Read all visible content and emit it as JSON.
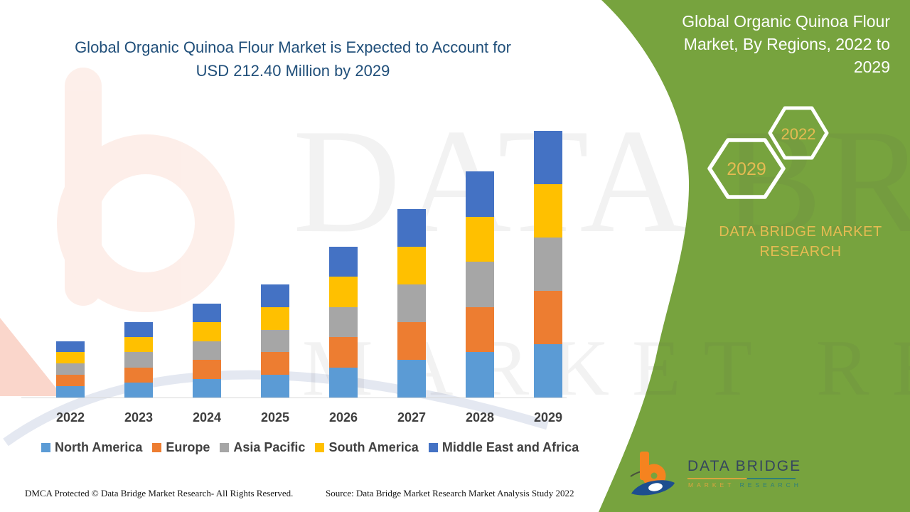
{
  "colors": {
    "title_blue": "#1F4E79",
    "panel_green": "#77A33E",
    "gold": "#E5BB52",
    "axis_line": "#D9D9D9",
    "label_gray": "#3F3F3F",
    "legend_gray": "#404040",
    "logo_navy": "#35465E",
    "logo_orange": "#F5831F",
    "logo_blue": "#1D4E8F",
    "logo_underline_gold": "#D9A53F",
    "logo_underline_teal": "#2E7F78",
    "watermark_salmon": "#F0805A",
    "watermark_swoosh": "#E4E8F1"
  },
  "header": {
    "title_line1": "Global Organic Quinoa Flour Market is Expected to Account for",
    "title_line2": "USD 212.40 Million by 2029"
  },
  "chart_data": {
    "type": "bar",
    "stacked": true,
    "title": "Global Organic Quinoa Flour Market is Expected to Account for USD 212.40 Million by 2029",
    "unit": "USD Million",
    "categories": [
      "2022",
      "2023",
      "2024",
      "2025",
      "2026",
      "2027",
      "2028",
      "2029"
    ],
    "series": [
      {
        "name": "North America",
        "color": "#5B9BD5",
        "values": [
          9.0,
          12.0,
          15.0,
          18.0,
          24.0,
          30.0,
          36.0,
          42.5
        ]
      },
      {
        "name": "Europe",
        "color": "#ED7D31",
        "values": [
          9.0,
          12.0,
          15.0,
          18.0,
          24.0,
          30.0,
          36.0,
          42.5
        ]
      },
      {
        "name": "Asia Pacific",
        "color": "#A6A6A6",
        "values": [
          9.0,
          12.0,
          15.0,
          18.0,
          24.0,
          30.0,
          36.0,
          42.5
        ]
      },
      {
        "name": "South America",
        "color": "#FFC000",
        "values": [
          9.0,
          12.0,
          15.0,
          18.0,
          24.0,
          30.0,
          36.0,
          42.5
        ]
      },
      {
        "name": "Middle East and Africa",
        "color": "#4472C4",
        "values": [
          9.0,
          12.0,
          15.0,
          18.0,
          24.0,
          30.0,
          36.0,
          42.4
        ]
      }
    ],
    "totals": [
      45.0,
      60.0,
      75.0,
      90.0,
      120.0,
      150.0,
      180.0,
      212.4
    ],
    "ylim": [
      0,
      215
    ],
    "grid": false,
    "legend_position": "bottom"
  },
  "side_panel": {
    "heading_lines": [
      "Global Organic Quinoa Flour",
      "Market, By Regions, 2022 to",
      "2029"
    ],
    "hexagon_back_label": "2022",
    "hexagon_front_label": "2029",
    "brand_text": "DATA BRIDGE MARKET RESEARCH"
  },
  "watermark": {
    "line1": "DATA BRIDGE",
    "line2": "MARKET RESEARCH"
  },
  "logo": {
    "name": "DATA BRIDGE",
    "sub_left": "MARKET",
    "sub_right": "RESEARCH"
  },
  "footer": {
    "dmca": "DMCA Protected © Data Bridge Market Research- All Rights Reserved.",
    "source": "Source: Data Bridge Market Research Market Analysis Study 2022"
  }
}
